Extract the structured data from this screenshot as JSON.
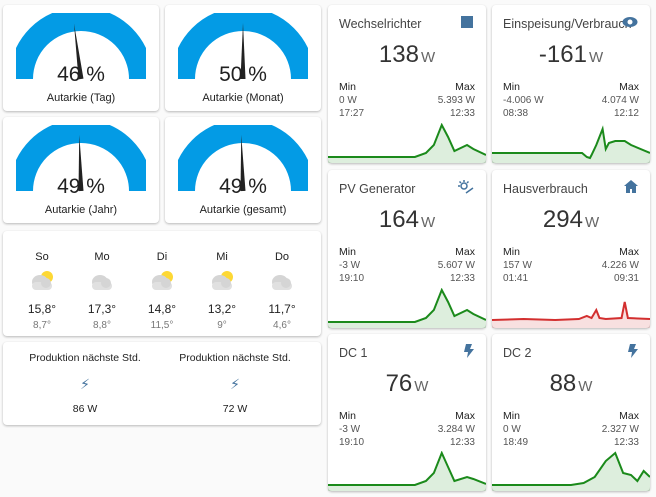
{
  "gauges": [
    {
      "value": "46 %",
      "label": "Autarkie (Tag)",
      "percent": 46
    },
    {
      "value": "50 %",
      "label": "Autarkie (Monat)",
      "percent": 50
    },
    {
      "value": "49 %",
      "label": "Autarkie (Jahr)",
      "percent": 49
    },
    {
      "value": "49 %",
      "label": "Autarkie (gesamt)",
      "percent": 49
    }
  ],
  "gauge_color": "#039be5",
  "weather": [
    {
      "day": "So",
      "icon": "partly-cloudy-icon",
      "high": "15,8°",
      "low": "8,7°"
    },
    {
      "day": "Mo",
      "icon": "cloudy-icon",
      "high": "17,3°",
      "low": "8,8°"
    },
    {
      "day": "Di",
      "icon": "partly-cloudy-icon",
      "high": "14,8°",
      "low": "11,5°"
    },
    {
      "day": "Mi",
      "icon": "partly-cloudy-icon",
      "high": "13,2°",
      "low": "9°"
    },
    {
      "day": "Do",
      "icon": "cloudy-icon",
      "high": "11,7°",
      "low": "4,6°"
    }
  ],
  "production": [
    {
      "label": "Produktion nächste Std.",
      "value": "86 W"
    },
    {
      "label": "Produktion nächste Std.",
      "value": "72 W"
    }
  ],
  "sensors": [
    {
      "title": "Wechselrichter",
      "icon": "chip-icon",
      "value": "138",
      "unit": "W",
      "min_label": "Min",
      "max_label": "Max",
      "min": "0 W",
      "min_time": "17:27",
      "max": "5.393 W",
      "max_time": "12:33",
      "color": "#1b8a1b"
    },
    {
      "title": "Einspeisung/Verbrauch",
      "icon": "eye-icon",
      "value": "-161",
      "unit": "W",
      "min_label": "Min",
      "max_label": "Max",
      "min": "-4.006 W",
      "min_time": "08:38",
      "max": "4.074 W",
      "max_time": "12:12",
      "color": "#1b8a1b"
    },
    {
      "title": "PV Generator",
      "icon": "solar-icon",
      "value": "164",
      "unit": "W",
      "min_label": "Min",
      "max_label": "Max",
      "min": "-3 W",
      "min_time": "19:10",
      "max": "5.607 W",
      "max_time": "12:33",
      "color": "#1b8a1b"
    },
    {
      "title": "Hausverbrauch",
      "icon": "home-icon",
      "value": "294",
      "unit": "W",
      "min_label": "Min",
      "max_label": "Max",
      "min": "157 W",
      "min_time": "01:41",
      "max": "4.226 W",
      "max_time": "09:31",
      "color": "#d32f2f"
    },
    {
      "title": "DC 1",
      "icon": "flash-icon",
      "value": "76",
      "unit": "W",
      "min_label": "Min",
      "max_label": "Max",
      "min": "-3 W",
      "min_time": "19:10",
      "max": "3.284 W",
      "max_time": "12:33",
      "color": "#1b8a1b"
    },
    {
      "title": "DC 2",
      "icon": "flash-icon",
      "value": "88",
      "unit": "W",
      "min_label": "Min",
      "max_label": "Max",
      "min": "0 W",
      "min_time": "18:49",
      "max": "2.327 W",
      "max_time": "12:33",
      "color": "#1b8a1b"
    }
  ]
}
